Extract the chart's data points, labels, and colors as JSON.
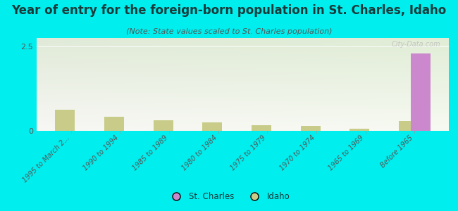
{
  "title": "Year of entry for the foreign-born population in St. Charles, Idaho",
  "subtitle": "(Note: State values scaled to St. Charles population)",
  "categories": [
    "1995 to March 2...",
    "1990 to 1994",
    "1985 to 1989",
    "1980 to 1984",
    "1975 to 1979",
    "1970 to 1974",
    "1965 to 1969",
    "Before 1965"
  ],
  "st_charles_values": [
    0,
    0,
    0,
    0,
    0,
    0,
    0,
    2.3
  ],
  "idaho_values": [
    0.62,
    0.42,
    0.32,
    0.25,
    0.16,
    0.14,
    0.06,
    0.3
  ],
  "st_charles_color": "#cc88cc",
  "idaho_color": "#c8cc88",
  "background_color": "#00eeee",
  "plot_bg_color_top_left": "#e0ead8",
  "plot_bg_color_right": "#f8f8f0",
  "ylim": [
    0,
    2.75
  ],
  "yticks": [
    0,
    2.5
  ],
  "bar_width": 0.4,
  "watermark": "City-Data.com",
  "title_fontsize": 12,
  "subtitle_fontsize": 8,
  "tick_fontsize": 7,
  "legend_fontsize": 8.5,
  "title_color": "#1a3a3a",
  "subtitle_color": "#555555",
  "tick_color": "#555555"
}
